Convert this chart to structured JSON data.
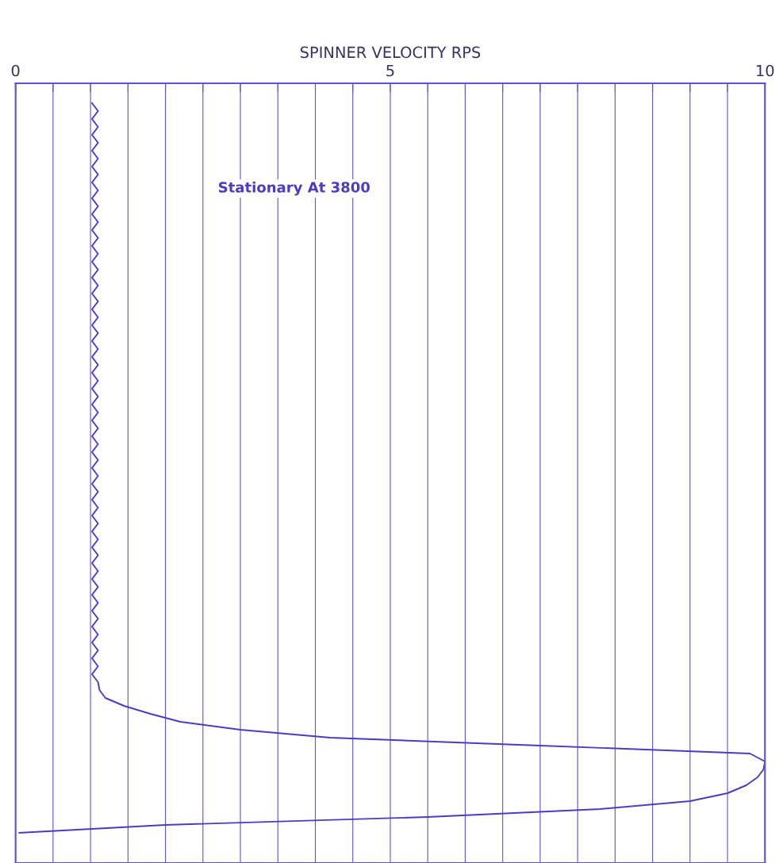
{
  "chart_data": {
    "type": "line",
    "orientation": "horizontal",
    "xlabel": "SPINNER VELOCITY RPS",
    "annotations": [
      "Stationary At 3800"
    ],
    "xlim": [
      0,
      10
    ],
    "xticks": [
      0,
      {
        "value": 0.5,
        "label": null
      },
      {
        "value": 1,
        "label": null
      },
      {
        "value": 1.5,
        "label": null
      },
      {
        "value": 2,
        "label": null
      },
      {
        "value": 2.5,
        "label": null
      },
      {
        "value": 3,
        "label": null
      },
      {
        "value": 3.5,
        "label": null
      },
      {
        "value": 4,
        "label": null
      },
      {
        "value": 4.5,
        "label": null
      },
      5,
      {
        "value": 5.5,
        "label": null
      },
      {
        "value": 6,
        "label": null
      },
      {
        "value": 6.5,
        "label": null
      },
      {
        "value": 7,
        "label": null
      },
      {
        "value": 7.5,
        "label": null
      },
      {
        "value": 8,
        "label": null
      },
      {
        "value": 8.5,
        "label": null
      },
      {
        "value": 9,
        "label": null
      },
      {
        "value": 9.5,
        "label": null
      },
      10
    ],
    "grid": "x",
    "categories": [
      null,
      null,
      null,
      null,
      null,
      null,
      null,
      null,
      null,
      null,
      null,
      null,
      null,
      null,
      null,
      null,
      null,
      null,
      null,
      null,
      null,
      null,
      null,
      null,
      null,
      null,
      null,
      null,
      null,
      null,
      null,
      null,
      null,
      null,
      null,
      null,
      null,
      null,
      null,
      null,
      null,
      null,
      null,
      null,
      null,
      null,
      null,
      null,
      null,
      null,
      null,
      null,
      null,
      null,
      null,
      null,
      null,
      null,
      null,
      null,
      null,
      null,
      null,
      null,
      null,
      null,
      null,
      null,
      null,
      null,
      null,
      null,
      null,
      null,
      null,
      null,
      null,
      null,
      null,
      null,
      null,
      null,
      null,
      null,
      null,
      null,
      null,
      null,
      null,
      null,
      null,
      null,
      null
    ],
    "series": [
      {
        "color": "#4a3cc4",
        "values": [
          1.02,
          1.1,
          1.02,
          1.1,
          1.02,
          1.1,
          1.02,
          1.1,
          1.02,
          1.1,
          1.02,
          1.1,
          1.02,
          1.1,
          1.02,
          1.1,
          1.02,
          1.1,
          1.02,
          1.1,
          1.02,
          1.1,
          1.02,
          1.1,
          1.02,
          1.1,
          1.02,
          1.1,
          1.02,
          1.1,
          1.02,
          1.1,
          1.02,
          1.1,
          1.02,
          1.1,
          1.02,
          1.1,
          1.02,
          1.1,
          1.02,
          1.1,
          1.02,
          1.1,
          1.02,
          1.1,
          1.02,
          1.1,
          1.02,
          1.1,
          1.02,
          1.1,
          1.02,
          1.1,
          1.02,
          1.1,
          1.02,
          1.1,
          1.02,
          1.1,
          1.02,
          1.1,
          1.02,
          1.1,
          1.02,
          1.1,
          1.02,
          1.1,
          1.02,
          1.1,
          1.02,
          1.1,
          1.02,
          1.1,
          1.12,
          1.2,
          1.45,
          1.8,
          2.2,
          3.0,
          4.2,
          7.0,
          9.8,
          10.0,
          9.98,
          9.9,
          9.75,
          9.5,
          9.0,
          7.8,
          5.5,
          2.0,
          0.05
        ]
      }
    ]
  }
}
